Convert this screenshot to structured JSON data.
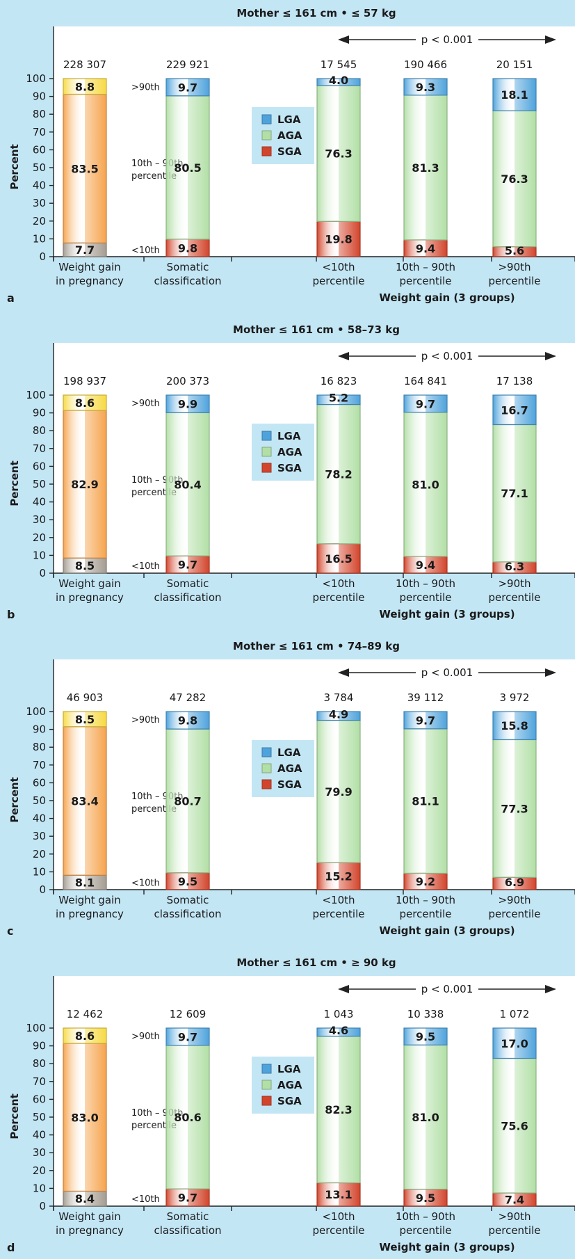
{
  "colors": {
    "background": "#c3e6f5",
    "lga": "#4fa3dc",
    "aga": "#b2dfa6",
    "sga": "#d2452c",
    "weight_gain_gt90": "#f7da45",
    "weight_gain_mid": "#f6a44e",
    "weight_gain_lt10": "#a59d92"
  },
  "legend": [
    "LGA",
    "AGA",
    "SGA"
  ],
  "percentile_labels": {
    "top": ">90th",
    "mid_line1": "10th – 90th",
    "mid_line2": "percentile",
    "low": "<10th"
  },
  "categories": [
    [
      "Weight gain",
      "in pregnancy"
    ],
    [
      "Somatic",
      "classification"
    ],
    [
      "<10th",
      "percentile"
    ],
    [
      "10th – 90th",
      "percentile"
    ],
    [
      ">90th",
      "percentile"
    ]
  ],
  "xgroup_label": "Weight gain (3 groups)",
  "ylabel": "Percent",
  "yticks": [
    0,
    10,
    20,
    30,
    40,
    50,
    60,
    70,
    80,
    90,
    100
  ],
  "p_value_text": "p < 0.001",
  "chart_data": [
    {
      "type": "bar",
      "panel": "a",
      "title": "Mother ≤ 161 cm • ≤ 57 kg",
      "ylabel": "Percent",
      "ylim": [
        0,
        100
      ],
      "counts": [
        "228 307",
        "229 921",
        "17 545",
        "190 466",
        "20 151"
      ],
      "weight_gain": {
        "lt10": 7.7,
        "mid": 83.5,
        "gt90": 8.8
      },
      "series": [
        {
          "name": "SGA",
          "values": [
            9.8,
            19.8,
            9.4,
            5.6
          ]
        },
        {
          "name": "AGA",
          "values": [
            80.5,
            76.3,
            81.3,
            76.3
          ]
        },
        {
          "name": "LGA",
          "values": [
            9.7,
            4.0,
            9.3,
            18.1
          ]
        }
      ]
    },
    {
      "type": "bar",
      "panel": "b",
      "title": "Mother ≤ 161 cm • 58–73 kg",
      "ylabel": "Percent",
      "ylim": [
        0,
        100
      ],
      "counts": [
        "198 937",
        "200 373",
        "16 823",
        "164 841",
        "17 138"
      ],
      "weight_gain": {
        "lt10": 8.5,
        "mid": 82.9,
        "gt90": 8.6
      },
      "series": [
        {
          "name": "SGA",
          "values": [
            9.7,
            16.5,
            9.4,
            6.3
          ]
        },
        {
          "name": "AGA",
          "values": [
            80.4,
            78.2,
            81.0,
            77.1
          ]
        },
        {
          "name": "LGA",
          "values": [
            9.9,
            5.2,
            9.7,
            16.7
          ]
        }
      ]
    },
    {
      "type": "bar",
      "panel": "c",
      "title": "Mother ≤ 161 cm • 74–89 kg",
      "ylabel": "Percent",
      "ylim": [
        0,
        100
      ],
      "counts": [
        "46 903",
        "47 282",
        "3 784",
        "39 112",
        "3 972"
      ],
      "weight_gain": {
        "lt10": 8.1,
        "mid": 83.4,
        "gt90": 8.5
      },
      "series": [
        {
          "name": "SGA",
          "values": [
            9.5,
            15.2,
            9.2,
            6.9
          ]
        },
        {
          "name": "AGA",
          "values": [
            80.7,
            79.9,
            81.1,
            77.3
          ]
        },
        {
          "name": "LGA",
          "values": [
            9.8,
            4.9,
            9.7,
            15.8
          ]
        }
      ]
    },
    {
      "type": "bar",
      "panel": "d",
      "title": "Mother ≤ 161 cm • ≥ 90 kg",
      "ylabel": "Percent",
      "ylim": [
        0,
        100
      ],
      "counts": [
        "12 462",
        "12 609",
        "1 043",
        "10 338",
        "1 072"
      ],
      "weight_gain": {
        "lt10": 8.4,
        "mid": 83.0,
        "gt90": 8.6
      },
      "series": [
        {
          "name": "SGA",
          "values": [
            9.7,
            13.1,
            9.5,
            7.4
          ]
        },
        {
          "name": "AGA",
          "values": [
            80.6,
            82.3,
            81.0,
            75.6
          ]
        },
        {
          "name": "LGA",
          "values": [
            9.7,
            4.6,
            9.5,
            17.0
          ]
        }
      ]
    }
  ]
}
